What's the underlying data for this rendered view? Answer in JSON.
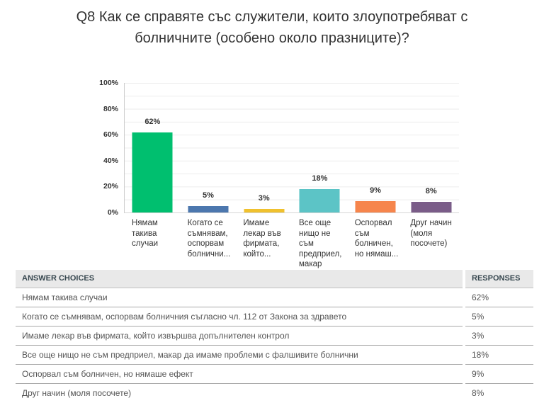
{
  "title_lines": [
    "Q8 Как се справяте със служители, които злоупотребяват с",
    "болничните (особено около празниците)?"
  ],
  "chart_data": {
    "type": "bar",
    "title": "Q8 Как се справяте със служители, които злоупотребяват с болничните (особено около празниците)?",
    "categories": [
      "Нямам такива случаи",
      "Когато се съмнявам, оспорвам болнични...",
      "Имаме лекар във фирмата, който...",
      "Все още нищо не съм предприел, макар",
      "Оспорвал съм болничен, но нямаш...",
      "Друг начин (моля посочете)"
    ],
    "category_label_lines": [
      "Нямам\nтакива\nслучаи",
      "Когато се\nсъмнявам,\nоспорвам\nболнични...",
      "Имаме\nлекар във\nфирмата,\nкойто...",
      "Все още\nнищо не\nсъм\nпредприел,\nмакар",
      "Оспорвал\nсъм\nболничен,\nно нямаш...",
      "Друг начин\n(моля\nпосочете)"
    ],
    "values": [
      62,
      5,
      3,
      18,
      9,
      8
    ],
    "value_labels": [
      "62%",
      "5%",
      "3%",
      "18%",
      "9%",
      "8%"
    ],
    "colors": [
      "#00BF6F",
      "#4C77AE",
      "#F0C12E",
      "#5CC4C6",
      "#F6854C",
      "#7A5C88"
    ],
    "y_ticks": [
      "0%",
      "20%",
      "40%",
      "60%",
      "80%",
      "100%"
    ],
    "y_tick_positions": [
      0,
      20,
      40,
      60,
      80,
      100
    ],
    "ylim": [
      0,
      100
    ],
    "xlabel": "",
    "ylabel": "",
    "grid": true,
    "legend": "none"
  },
  "table": {
    "headers": {
      "answer": "ANSWER CHOICES",
      "responses": "RESPONSES"
    },
    "rows": [
      {
        "label": "Нямам такива случаи",
        "value": "62%"
      },
      {
        "label": "Когато се съмнявам, оспорвам болничния съгласно чл. 112 от Закона за здравето",
        "value": "5%"
      },
      {
        "label": "Имаме лекар във фирмата, който извършва допълнителен контрол",
        "value": "3%"
      },
      {
        "label": "Все още нищо не съм предприел, макар да имаме проблеми с фалшивите болнични",
        "value": "18%"
      },
      {
        "label": "Оспорвал съм болничен, но нямаше ефект",
        "value": "9%"
      },
      {
        "label": "Друг начин (моля посочете)",
        "value": "8%"
      }
    ]
  }
}
